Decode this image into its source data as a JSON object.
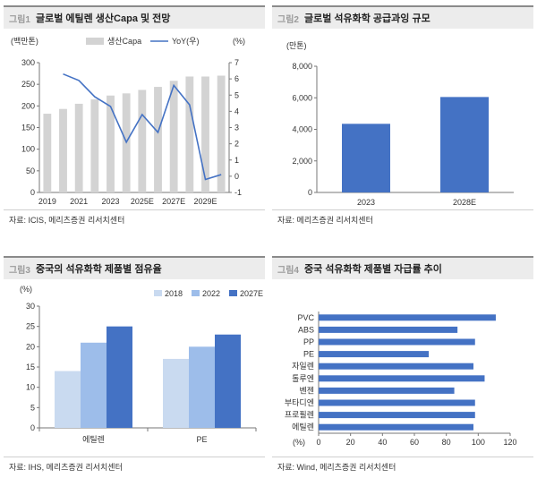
{
  "panels": [
    {
      "tag": "그림1",
      "title": "글로벌 에틸렌 생산Capa 및 전망",
      "source": "자료: ICIS, 메리츠증권 리서치센터",
      "left_unit": "(백만톤)",
      "right_unit": "(%)",
      "legend": [
        "생산Capa",
        "YoY(우)"
      ],
      "x_tick_labels": [
        "2019",
        "2021",
        "2023",
        "2025E",
        "2027E",
        "2029E"
      ],
      "left_ticks": [
        "0",
        "50",
        "100",
        "150",
        "200",
        "250",
        "300"
      ],
      "right_ticks": [
        "-1",
        "0",
        "1",
        "2",
        "3",
        "4",
        "5",
        "6",
        "7"
      ]
    },
    {
      "tag": "그림2",
      "title": "글로벌 석유화학 공급과잉 규모",
      "source": "자료: 메리츠증권 리서치센터",
      "unit": "(만톤)",
      "y_ticks": [
        "0",
        "2,000",
        "4,000",
        "6,000",
        "8,000"
      ]
    },
    {
      "tag": "그림3",
      "title": "중국의 석유화학 제품별 점유율",
      "source": "자료: IHS, 메리츠증권 리서치센터",
      "unit": "(%)",
      "y_ticks": [
        "0",
        "5",
        "10",
        "15",
        "20",
        "25",
        "30"
      ]
    },
    {
      "tag": "그림4",
      "title": "중국 석유화학 제품별 자급률 추이",
      "source": "자료: Wind, 메리츠증권 리서치센터",
      "unit": "(%)",
      "x_ticks": [
        "0",
        "20",
        "40",
        "60",
        "80",
        "100",
        "120"
      ]
    }
  ],
  "chart_data": [
    {
      "type": "bar+line",
      "title": "글로벌 에틸렌 생산Capa 및 전망",
      "x": [
        "2019",
        "2020",
        "2021",
        "2022",
        "2023",
        "2024",
        "2025E",
        "2026E",
        "2027E",
        "2028E",
        "2029E",
        "2030E"
      ],
      "series": [
        {
          "name": "생산Capa",
          "axis": "left",
          "type": "bar",
          "color": "#d3d3d3",
          "values": [
            182,
            193,
            205,
            215,
            224,
            229,
            237,
            244,
            258,
            268,
            268,
            270
          ]
        },
        {
          "name": "YoY(우)",
          "axis": "right",
          "type": "line",
          "color": "#4472c4",
          "values": [
            null,
            6.3,
            5.9,
            4.9,
            4.3,
            2.1,
            3.8,
            2.7,
            5.6,
            4.4,
            -0.2,
            0.1
          ]
        }
      ],
      "ylim_left": [
        0,
        300
      ],
      "ylim_right": [
        -1,
        7
      ]
    },
    {
      "type": "bar",
      "title": "글로벌 석유화학 공급과잉 규모",
      "categories": [
        "2023",
        "2028E"
      ],
      "values": [
        4350,
        6050
      ],
      "ylim": [
        0,
        8000
      ],
      "color": "#4472c4"
    },
    {
      "type": "bar",
      "title": "중국의 석유화학 제품별 점유율",
      "categories": [
        "에틸렌",
        "PE"
      ],
      "series": [
        {
          "name": "2018",
          "color": "#c9daf0",
          "values": [
            14,
            17
          ]
        },
        {
          "name": "2022",
          "color": "#9dbdea",
          "values": [
            21,
            20
          ]
        },
        {
          "name": "2027E",
          "color": "#4472c4",
          "values": [
            25,
            23
          ]
        }
      ],
      "ylim": [
        0,
        30
      ]
    },
    {
      "type": "bar",
      "orientation": "horizontal",
      "title": "중국 석유화학 제품별 자급률 추이",
      "categories": [
        "PVC",
        "ABS",
        "PP",
        "PE",
        "자일렌",
        "톨루엔",
        "벤젠",
        "부타디엔",
        "프로필렌",
        "에틸렌"
      ],
      "values": [
        111,
        87,
        98,
        69,
        97,
        104,
        85,
        98,
        98,
        97
      ],
      "xlim": [
        0,
        120
      ],
      "color": "#4472c4"
    }
  ]
}
